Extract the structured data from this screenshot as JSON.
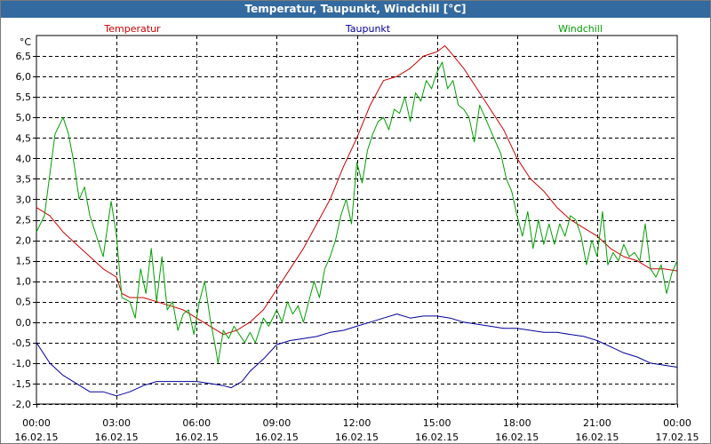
{
  "window": {
    "title": "Temperatur, Taupunkt, Windchill [°C]"
  },
  "chart_data": {
    "type": "line",
    "title": "Temperatur, Taupunkt, Windchill [°C]",
    "ylabel": "°C",
    "ylim": [
      -2.0,
      7.0
    ],
    "yticks": [
      "6,5",
      "6,0",
      "5,5",
      "5,0",
      "4,5",
      "4,0",
      "3,5",
      "3,0",
      "2,5",
      "2,0",
      "1,5",
      "1,0",
      "0,5",
      "0,0",
      "-0,5",
      "-1,0",
      "-1,5",
      "-2,0"
    ],
    "ytick_values": [
      6.5,
      6.0,
      5.5,
      5.0,
      4.5,
      4.0,
      3.5,
      3.0,
      2.5,
      2.0,
      1.5,
      1.0,
      0.5,
      0.0,
      -0.5,
      -1.0,
      -1.5,
      -2.0
    ],
    "xlim": [
      0,
      24
    ],
    "xticks": [
      {
        "time": "00:00",
        "date": "16.02.15"
      },
      {
        "time": "03:00",
        "date": "16.02.15"
      },
      {
        "time": "06:00",
        "date": "16.02.15"
      },
      {
        "time": "09:00",
        "date": "16.02.15"
      },
      {
        "time": "12:00",
        "date": "16.02.15"
      },
      {
        "time": "15:00",
        "date": "16.02.15"
      },
      {
        "time": "18:00",
        "date": "16.02.15"
      },
      {
        "time": "21:00",
        "date": "16.02.15"
      },
      {
        "time": "00:00",
        "date": "17.02.15"
      }
    ],
    "xtick_values": [
      0,
      3,
      6,
      9,
      12,
      15,
      18,
      21,
      24
    ],
    "grid": true,
    "legend_placement": "top",
    "series": [
      {
        "name": "Temperatur",
        "color": "#cc0000",
        "points": [
          [
            0,
            2.8
          ],
          [
            0.5,
            2.6
          ],
          [
            1,
            2.2
          ],
          [
            1.5,
            1.9
          ],
          [
            2,
            1.6
          ],
          [
            2.5,
            1.3
          ],
          [
            3,
            1.1
          ],
          [
            3.2,
            0.7
          ],
          [
            3.5,
            0.6
          ],
          [
            4,
            0.6
          ],
          [
            4.5,
            0.5
          ],
          [
            5,
            0.4
          ],
          [
            5.5,
            0.3
          ],
          [
            6,
            0.1
          ],
          [
            6.5,
            -0.1
          ],
          [
            7,
            -0.3
          ],
          [
            7.5,
            -0.2
          ],
          [
            8,
            0.0
          ],
          [
            8.5,
            0.3
          ],
          [
            9,
            0.8
          ],
          [
            9.5,
            1.3
          ],
          [
            10,
            1.8
          ],
          [
            10.5,
            2.4
          ],
          [
            11,
            3.0
          ],
          [
            11.5,
            3.8
          ],
          [
            12,
            4.5
          ],
          [
            12.5,
            5.3
          ],
          [
            13,
            5.9
          ],
          [
            13.5,
            6.0
          ],
          [
            14,
            6.2
          ],
          [
            14.5,
            6.5
          ],
          [
            15,
            6.6
          ],
          [
            15.3,
            6.75
          ],
          [
            15.5,
            6.6
          ],
          [
            16,
            6.2
          ],
          [
            16.5,
            5.7
          ],
          [
            17,
            5.2
          ],
          [
            17.5,
            4.7
          ],
          [
            18,
            4.0
          ],
          [
            18.5,
            3.5
          ],
          [
            19,
            3.2
          ],
          [
            19.5,
            2.8
          ],
          [
            20,
            2.5
          ],
          [
            20.5,
            2.3
          ],
          [
            21,
            2.1
          ],
          [
            21.5,
            1.8
          ],
          [
            22,
            1.6
          ],
          [
            22.5,
            1.5
          ],
          [
            23,
            1.3
          ],
          [
            23.5,
            1.3
          ],
          [
            24,
            1.25
          ]
        ]
      },
      {
        "name": "Taupunkt",
        "color": "#000099",
        "points": [
          [
            0,
            -0.5
          ],
          [
            0.5,
            -1.0
          ],
          [
            1,
            -1.3
          ],
          [
            1.5,
            -1.5
          ],
          [
            2,
            -1.7
          ],
          [
            2.5,
            -1.7
          ],
          [
            3,
            -1.8
          ],
          [
            3.5,
            -1.7
          ],
          [
            4,
            -1.55
          ],
          [
            4.5,
            -1.45
          ],
          [
            5,
            -1.45
          ],
          [
            5.5,
            -1.45
          ],
          [
            6,
            -1.45
          ],
          [
            6.5,
            -1.5
          ],
          [
            7,
            -1.55
          ],
          [
            7.3,
            -1.6
          ],
          [
            7.7,
            -1.45
          ],
          [
            8,
            -1.2
          ],
          [
            8.5,
            -0.9
          ],
          [
            9,
            -0.55
          ],
          [
            9.5,
            -0.45
          ],
          [
            10,
            -0.4
          ],
          [
            10.5,
            -0.35
          ],
          [
            11,
            -0.25
          ],
          [
            11.5,
            -0.2
          ],
          [
            12,
            -0.1
          ],
          [
            12.5,
            0.0
          ],
          [
            13,
            0.1
          ],
          [
            13.5,
            0.2
          ],
          [
            14,
            0.1
          ],
          [
            14.5,
            0.15
          ],
          [
            15,
            0.15
          ],
          [
            15.5,
            0.1
          ],
          [
            16,
            0.0
          ],
          [
            16.5,
            -0.05
          ],
          [
            17,
            -0.1
          ],
          [
            17.5,
            -0.15
          ],
          [
            18,
            -0.15
          ],
          [
            18.5,
            -0.2
          ],
          [
            19,
            -0.25
          ],
          [
            19.5,
            -0.25
          ],
          [
            20,
            -0.3
          ],
          [
            20.5,
            -0.35
          ],
          [
            21,
            -0.45
          ],
          [
            21.5,
            -0.6
          ],
          [
            22,
            -0.75
          ],
          [
            22.5,
            -0.85
          ],
          [
            23,
            -1.0
          ],
          [
            23.5,
            -1.05
          ],
          [
            24,
            -1.1
          ]
        ]
      },
      {
        "name": "Windchill",
        "color": "#00a000",
        "points": [
          [
            0,
            2.2
          ],
          [
            0.3,
            2.6
          ],
          [
            0.5,
            3.6
          ],
          [
            0.7,
            4.6
          ],
          [
            1,
            5.0
          ],
          [
            1.2,
            4.6
          ],
          [
            1.4,
            3.9
          ],
          [
            1.6,
            3.0
          ],
          [
            1.8,
            3.3
          ],
          [
            2,
            2.6
          ],
          [
            2.3,
            2.0
          ],
          [
            2.5,
            1.6
          ],
          [
            2.8,
            2.95
          ],
          [
            3,
            2.1
          ],
          [
            3.2,
            0.6
          ],
          [
            3.5,
            0.5
          ],
          [
            3.7,
            0.1
          ],
          [
            3.9,
            1.3
          ],
          [
            4.1,
            0.7
          ],
          [
            4.3,
            1.8
          ],
          [
            4.5,
            0.5
          ],
          [
            4.7,
            1.6
          ],
          [
            4.9,
            0.3
          ],
          [
            5.1,
            0.5
          ],
          [
            5.3,
            -0.2
          ],
          [
            5.5,
            0.2
          ],
          [
            5.7,
            0.3
          ],
          [
            5.9,
            -0.3
          ],
          [
            6.1,
            0.5
          ],
          [
            6.3,
            1.0
          ],
          [
            6.5,
            0.1
          ],
          [
            6.7,
            -0.6
          ],
          [
            6.8,
            -1.0
          ],
          [
            7,
            -0.2
          ],
          [
            7.2,
            -0.4
          ],
          [
            7.4,
            -0.1
          ],
          [
            7.6,
            -0.3
          ],
          [
            7.8,
            -0.5
          ],
          [
            8,
            -0.25
          ],
          [
            8.2,
            -0.5
          ],
          [
            8.5,
            0.1
          ],
          [
            8.7,
            -0.1
          ],
          [
            9,
            0.3
          ],
          [
            9.2,
            0.0
          ],
          [
            9.4,
            0.5
          ],
          [
            9.6,
            0.2
          ],
          [
            9.8,
            0.4
          ],
          [
            10,
            0.0
          ],
          [
            10.2,
            0.5
          ],
          [
            10.4,
            1.0
          ],
          [
            10.6,
            0.6
          ],
          [
            10.8,
            1.3
          ],
          [
            11,
            1.6
          ],
          [
            11.2,
            2.0
          ],
          [
            11.4,
            2.6
          ],
          [
            11.6,
            3.0
          ],
          [
            11.8,
            2.4
          ],
          [
            12,
            3.9
          ],
          [
            12.2,
            3.4
          ],
          [
            12.4,
            4.2
          ],
          [
            12.6,
            4.6
          ],
          [
            12.8,
            4.9
          ],
          [
            13,
            5.0
          ],
          [
            13.2,
            4.7
          ],
          [
            13.4,
            5.2
          ],
          [
            13.6,
            5.1
          ],
          [
            13.8,
            5.5
          ],
          [
            14,
            4.9
          ],
          [
            14.2,
            5.6
          ],
          [
            14.4,
            5.4
          ],
          [
            14.6,
            5.9
          ],
          [
            14.8,
            5.7
          ],
          [
            15,
            6.1
          ],
          [
            15.2,
            6.35
          ],
          [
            15.4,
            5.7
          ],
          [
            15.6,
            5.9
          ],
          [
            15.8,
            5.3
          ],
          [
            16,
            5.2
          ],
          [
            16.2,
            5.0
          ],
          [
            16.4,
            4.4
          ],
          [
            16.6,
            5.3
          ],
          [
            16.8,
            5.0
          ],
          [
            17,
            4.7
          ],
          [
            17.2,
            4.4
          ],
          [
            17.4,
            4.1
          ],
          [
            17.6,
            3.5
          ],
          [
            17.8,
            3.2
          ],
          [
            18,
            2.6
          ],
          [
            18.2,
            2.1
          ],
          [
            18.4,
            2.7
          ],
          [
            18.6,
            1.8
          ],
          [
            18.8,
            2.5
          ],
          [
            19,
            1.9
          ],
          [
            19.2,
            2.4
          ],
          [
            19.4,
            1.9
          ],
          [
            19.6,
            2.4
          ],
          [
            19.8,
            2.1
          ],
          [
            20,
            2.6
          ],
          [
            20.2,
            2.5
          ],
          [
            20.4,
            2.1
          ],
          [
            20.6,
            1.4
          ],
          [
            20.8,
            2.0
          ],
          [
            21,
            1.6
          ],
          [
            21.2,
            2.7
          ],
          [
            21.4,
            1.4
          ],
          [
            21.6,
            1.7
          ],
          [
            21.8,
            1.5
          ],
          [
            22,
            1.9
          ],
          [
            22.2,
            1.6
          ],
          [
            22.4,
            1.7
          ],
          [
            22.6,
            1.5
          ],
          [
            22.8,
            2.4
          ],
          [
            23,
            1.3
          ],
          [
            23.2,
            1.1
          ],
          [
            23.4,
            1.4
          ],
          [
            23.6,
            0.7
          ],
          [
            23.8,
            1.2
          ],
          [
            24,
            1.5
          ]
        ]
      }
    ]
  }
}
